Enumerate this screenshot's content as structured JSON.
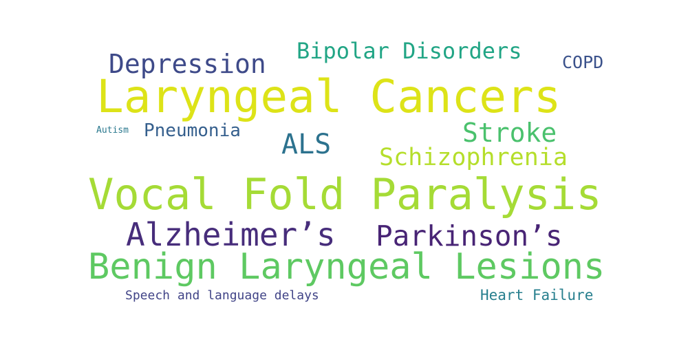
{
  "word_cloud": {
    "words": [
      {
        "key": "laryngeal-cancers",
        "text": "Laryngeal Cancers",
        "color": "#dde318"
      },
      {
        "key": "vocal-fold-paralysis",
        "text": "Vocal Fold Paralysis",
        "color": "#a5db36"
      },
      {
        "key": "benign-laryngeal-lesions",
        "text": "Benign Laryngeal Lesions",
        "color": "#5ec962"
      },
      {
        "key": "alzheimers",
        "text": "Alzheimer’s",
        "color": "#472d7b"
      },
      {
        "key": "parkinsons",
        "text": "Parkinson’s",
        "color": "#482475"
      },
      {
        "key": "depression",
        "text": "Depression",
        "color": "#3e4a89"
      },
      {
        "key": "bipolar-disorders",
        "text": "Bipolar Disorders",
        "color": "#21a585"
      },
      {
        "key": "stroke",
        "text": "Stroke",
        "color": "#4ac16d"
      },
      {
        "key": "schizophrenia",
        "text": "Schizophrenia",
        "color": "#b5de2b"
      },
      {
        "key": "als",
        "text": "ALS",
        "color": "#2c728e"
      },
      {
        "key": "pneumonia",
        "text": "Pneumonia",
        "color": "#355f8d"
      },
      {
        "key": "copd",
        "text": "COPD",
        "color": "#3b528b"
      },
      {
        "key": "autism",
        "text": "Autism",
        "color": "#2a788e"
      },
      {
        "key": "speech-and-language-delays",
        "text": "Speech and language delays",
        "color": "#414487"
      },
      {
        "key": "heart-failure",
        "text": "Heart Failure",
        "color": "#277f8e"
      }
    ]
  }
}
